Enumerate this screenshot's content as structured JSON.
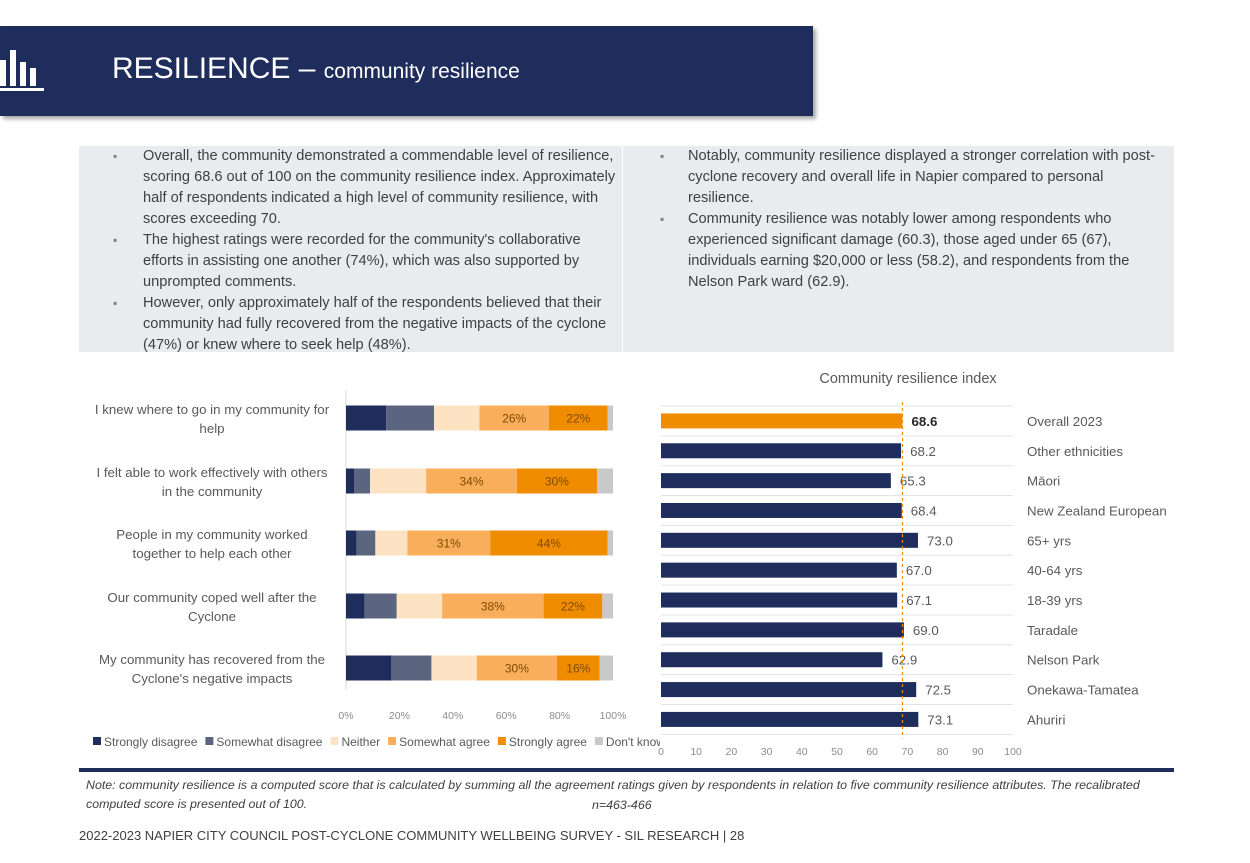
{
  "header": {
    "title_main": "RESILIENCE –",
    "title_sub": "community resilience",
    "logo_icon": "bar-chart-icon"
  },
  "summary": {
    "left_bullets": [
      "Overall, the community demonstrated a commendable level of resilience, scoring 68.6 out of 100 on the community resilience index. Approximately half of respondents indicated a high level of community resilience, with scores exceeding 70.",
      "The highest ratings were recorded for the community's collaborative efforts in assisting one another (74%), which was also supported by unprompted comments.",
      "However, only approximately half of the respondents believed that their community had fully recovered from the negative impacts of the cyclone (47%) or knew where to seek help (48%)."
    ],
    "right_bullets": [
      "Notably, community resilience displayed a stronger correlation with post-cyclone recovery and overall life in Napier compared to personal resilience.",
      "Community resilience was notably lower among respondents who experienced significant damage (60.3), those aged under 65 (67), individuals earning $20,000 or less (58.2), and respondents from the Nelson Park ward (62.9)."
    ]
  },
  "chart_data": [
    {
      "type": "bar",
      "orientation": "horizontal-stacked-100",
      "categories": [
        [
          "I knew where to go in my community for",
          "help"
        ],
        [
          "I felt able to work effectively with others",
          "in the community"
        ],
        [
          "People in my community worked",
          "together to help each other"
        ],
        [
          "Our community coped well after the",
          "Cyclone"
        ],
        [
          "My community has recovered from the",
          "Cyclone's negative impacts"
        ]
      ],
      "series": [
        {
          "name": "Strongly disagree",
          "color": "#1f2d5c",
          "values": [
            15,
            3,
            4,
            7,
            17
          ]
        },
        {
          "name": "Somewhat disagree",
          "color": "#5b6580",
          "values": [
            18,
            6,
            7,
            12,
            15
          ]
        },
        {
          "name": "Neither",
          "color": "#fde3c4",
          "values": [
            17,
            21,
            12,
            17,
            17
          ]
        },
        {
          "name": "Somewhat agree",
          "color": "#f9ae5b",
          "values": [
            26,
            34,
            31,
            38,
            30
          ]
        },
        {
          "name": "Strongly agree",
          "color": "#f08c00",
          "values": [
            22,
            30,
            44,
            22,
            16
          ]
        },
        {
          "name": "Don't know",
          "color": "#c9c9c9",
          "values": [
            2,
            6,
            2,
            4,
            5
          ]
        }
      ],
      "data_labels": [
        [
          "",
          "",
          "",
          "26%",
          "22%",
          ""
        ],
        [
          "",
          "",
          "",
          "34%",
          "30%",
          ""
        ],
        [
          "",
          "",
          "",
          "31%",
          "44%",
          ""
        ],
        [
          "",
          "",
          "",
          "38%",
          "22%",
          ""
        ],
        [
          "",
          "",
          "",
          "30%",
          "16%",
          ""
        ]
      ],
      "x_ticks": [
        "0%",
        "20%",
        "40%",
        "60%",
        "80%",
        "100%"
      ],
      "xlim": [
        0,
        100
      ],
      "legend": "bottom",
      "grid": false
    },
    {
      "type": "bar",
      "orientation": "horizontal",
      "title": "Community resilience index",
      "categories": [
        "Overall 2023",
        "Other ethnicities",
        "Māori",
        "New Zealand European",
        "65+ yrs",
        "40-64 yrs",
        "18-39 yrs",
        "Taradale",
        "Nelson Park",
        "Onekawa-Tamatea",
        "Ahuriri"
      ],
      "values": [
        68.6,
        68.2,
        65.3,
        68.4,
        73.0,
        67.0,
        67.1,
        69.0,
        62.9,
        72.5,
        73.1
      ],
      "value_labels": [
        "68.6",
        "68.2",
        "65.3",
        "68.4",
        "73.0",
        "67.0",
        "67.1",
        "69.0",
        "62.9",
        "72.5",
        "73.1"
      ],
      "highlight_color": "#f08c00",
      "bar_color": "#1f2d5c",
      "reference_line": 68.6,
      "reference_color": "#f08c00",
      "x_ticks": [
        "0",
        "10",
        "20",
        "30",
        "40",
        "50",
        "60",
        "70",
        "80",
        "90",
        "100"
      ],
      "xlim": [
        0,
        100
      ],
      "grid": true
    }
  ],
  "footer": {
    "note": "Note: community resilience is a computed score that is calculated by summing all the agreement ratings given by respondents in relation to five community resilience attributes. The recalibrated computed score is presented out of 100.",
    "n": "n=463-466",
    "page": "2022-2023 NAPIER CITY COUNCIL POST-CYCLONE COMMUNITY WELLBEING SURVEY - SIL RESEARCH | 28"
  }
}
